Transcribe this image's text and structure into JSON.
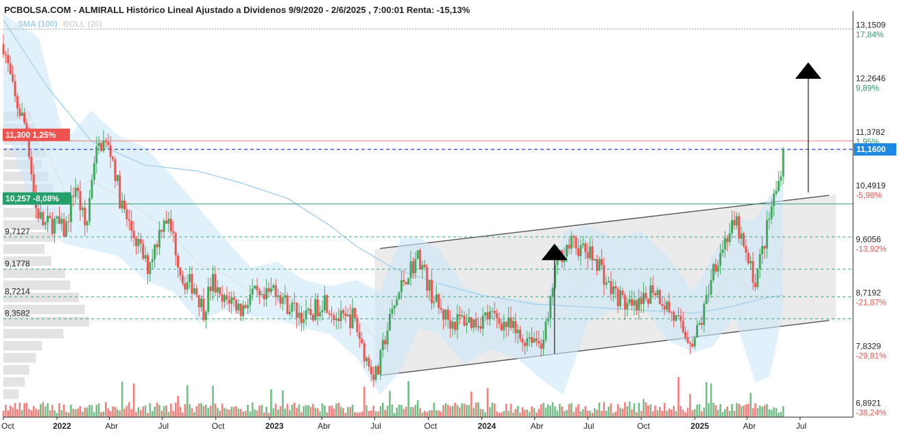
{
  "title": "PCBOLSA.COM - ALMIRALL Histórico Lineal Ajustado a Dividenos 9/9/2020 - 2/6/2025 , 7:00:01 Renta: -15,13%",
  "legend": {
    "sma": "SMA (100)",
    "boll": "BOLL (20)"
  },
  "colors": {
    "up": "#43a85f",
    "down": "#ef5350",
    "band": "#cde7f8",
    "sma": "#a9d2ee",
    "price_tag": "#1e88e5",
    "max_tag": "#ef5350",
    "min_tag": "#26a06a"
  },
  "tags": {
    "max": {
      "text": "11,300  1,25%",
      "value": 11.3
    },
    "min": {
      "text": "10,257  -8,08%",
      "value": 10.257
    },
    "last": {
      "text": "11,1600",
      "value": 11.16
    }
  },
  "left_levels": [
    {
      "label": "9,7127",
      "value": 9.7127
    },
    {
      "label": "9,1778",
      "value": 9.1778
    },
    {
      "label": "8,7214",
      "value": 8.7214
    },
    {
      "label": "8,3582",
      "value": 8.3582
    }
  ],
  "chart_data": {
    "type": "candlestick",
    "title": "PCBOLSA.COM - ALMIRALL Histórico Lineal Ajustado a Dividenos 9/9/2020 - 2/6/2025 , 7:00:01 Renta: -15,13%",
    "ylim": [
      6.73,
      13.36
    ],
    "y_ticks": [
      {
        "value": 13.1509,
        "label": "13,1509",
        "pct": "17,84%"
      },
      {
        "value": 12.2646,
        "label": "12,2646",
        "pct": "9,89%"
      },
      {
        "value": 11.3782,
        "label": "11,3782",
        "pct": "1,95%"
      },
      {
        "value": 10.4919,
        "label": "10,4919",
        "pct": "-5,98%"
      },
      {
        "value": 9.6056,
        "label": "9,6056",
        "pct": "-13,92%"
      },
      {
        "value": 8.7192,
        "label": "8,7192",
        "pct": "-21,87%"
      },
      {
        "value": 7.8329,
        "label": "7,8329",
        "pct": "-29,81%"
      },
      {
        "value": 6.8921,
        "label": "6,8921",
        "pct": "-38,24%"
      }
    ],
    "x_ticks": [
      {
        "label": "Oct",
        "date": "2021-10-01"
      },
      {
        "label": "2022",
        "date": "2022-01-01",
        "bold": true
      },
      {
        "label": "Abr",
        "date": "2022-04-01"
      },
      {
        "label": "Jul",
        "date": "2022-07-01"
      },
      {
        "label": "Oct",
        "date": "2022-10-01"
      },
      {
        "label": "2023",
        "date": "2023-01-01",
        "bold": true
      },
      {
        "label": "Abr",
        "date": "2023-04-01"
      },
      {
        "label": "Jul",
        "date": "2023-07-01"
      },
      {
        "label": "Oct",
        "date": "2023-10-01"
      },
      {
        "label": "2024",
        "date": "2024-01-01",
        "bold": true
      },
      {
        "label": "Abr",
        "date": "2024-04-01"
      },
      {
        "label": "Jul",
        "date": "2024-07-01"
      },
      {
        "label": "Oct",
        "date": "2024-10-01"
      },
      {
        "label": "2025",
        "date": "2025-01-01",
        "bold": true
      },
      {
        "label": "Abr",
        "date": "2025-04-01"
      },
      {
        "label": "Jul",
        "date": "2025-07-01"
      }
    ],
    "x_range": [
      "2021-10-01",
      "2025-09-30"
    ],
    "last_date": "2025-06-02",
    "ref_lines": {
      "max": 11.3,
      "last": 11.16,
      "min": 10.257,
      "top_dotted": 13.1509,
      "dashed": [
        9.7127,
        9.1778,
        8.7214,
        8.3582
      ]
    },
    "close_path": [
      [
        "2021-10-01",
        12.9
      ],
      [
        "2021-10-20",
        12.0
      ],
      [
        "2021-11-10",
        11.5
      ],
      [
        "2021-11-25",
        10.2
      ],
      [
        "2021-12-10",
        9.9
      ],
      [
        "2021-12-28",
        9.95
      ],
      [
        "2022-01-15",
        9.8
      ],
      [
        "2022-02-01",
        10.6
      ],
      [
        "2022-02-20",
        9.8
      ],
      [
        "2022-03-05",
        11.0
      ],
      [
        "2022-03-20",
        11.3
      ],
      [
        "2022-04-05",
        11.1
      ],
      [
        "2022-04-20",
        10.3
      ],
      [
        "2022-05-05",
        9.9
      ],
      [
        "2022-05-20",
        9.6
      ],
      [
        "2022-06-05",
        9.2
      ],
      [
        "2022-06-20",
        9.6
      ],
      [
        "2022-07-05",
        10.1
      ],
      [
        "2022-07-20",
        9.7
      ],
      [
        "2022-08-05",
        9.0
      ],
      [
        "2022-08-25",
        8.9
      ],
      [
        "2022-09-10",
        8.5
      ],
      [
        "2022-09-25",
        9.0
      ],
      [
        "2022-10-10",
        8.6
      ],
      [
        "2022-10-25",
        8.7
      ],
      [
        "2022-11-15",
        8.5
      ],
      [
        "2022-12-01",
        8.8
      ],
      [
        "2022-12-20",
        8.6
      ],
      [
        "2023-01-10",
        8.9
      ],
      [
        "2023-01-30",
        8.6
      ],
      [
        "2023-02-15",
        8.5
      ],
      [
        "2023-03-05",
        8.35
      ],
      [
        "2023-03-20",
        8.5
      ],
      [
        "2023-04-05",
        8.7
      ],
      [
        "2023-04-25",
        8.4
      ],
      [
        "2023-05-10",
        8.3
      ],
      [
        "2023-05-25",
        8.4
      ],
      [
        "2023-06-10",
        7.9
      ],
      [
        "2023-06-20",
        7.6
      ],
      [
        "2023-07-05",
        7.4
      ],
      [
        "2023-07-20",
        8.1
      ],
      [
        "2023-08-05",
        8.6
      ],
      [
        "2023-08-20",
        9.0
      ],
      [
        "2023-09-01",
        9.2
      ],
      [
        "2023-09-15",
        9.4
      ],
      [
        "2023-10-01",
        8.9
      ],
      [
        "2023-10-20",
        8.5
      ],
      [
        "2023-11-10",
        8.3
      ],
      [
        "2023-12-01",
        8.35
      ],
      [
        "2023-12-20",
        8.3
      ],
      [
        "2024-01-10",
        8.4
      ],
      [
        "2024-01-30",
        8.35
      ],
      [
        "2024-02-20",
        8.2
      ],
      [
        "2024-03-10",
        8.0
      ],
      [
        "2024-03-25",
        8.1
      ],
      [
        "2024-04-10",
        7.95
      ],
      [
        "2024-04-25",
        8.3
      ],
      [
        "2024-05-05",
        9.2
      ],
      [
        "2024-05-20",
        9.5
      ],
      [
        "2024-06-05",
        9.6
      ],
      [
        "2024-06-20",
        9.5
      ],
      [
        "2024-07-05",
        9.4
      ],
      [
        "2024-07-20",
        9.3
      ],
      [
        "2024-08-05",
        8.9
      ],
      [
        "2024-08-25",
        8.7
      ],
      [
        "2024-09-15",
        8.5
      ],
      [
        "2024-10-01",
        8.55
      ],
      [
        "2024-10-20",
        8.9
      ],
      [
        "2024-11-05",
        8.7
      ],
      [
        "2024-11-25",
        8.4
      ],
      [
        "2024-12-15",
        8.1
      ],
      [
        "2024-12-30",
        8.0
      ],
      [
        "2025-01-15",
        8.4
      ],
      [
        "2025-02-01",
        9.2
      ],
      [
        "2025-02-15",
        9.5
      ],
      [
        "2025-03-01",
        9.8
      ],
      [
        "2025-03-15",
        9.9
      ],
      [
        "2025-04-01",
        9.3
      ],
      [
        "2025-04-15",
        9.0
      ],
      [
        "2025-04-30",
        9.6
      ],
      [
        "2025-05-15",
        10.3
      ],
      [
        "2025-05-25",
        10.6
      ],
      [
        "2025-06-02",
        11.16
      ]
    ],
    "sma_100": [
      [
        "2021-10-01",
        13.3
      ],
      [
        "2021-12-15",
        12.2
      ],
      [
        "2022-03-01",
        11.3
      ],
      [
        "2022-06-01",
        10.9
      ],
      [
        "2022-09-01",
        10.8
      ],
      [
        "2022-11-15",
        10.6
      ],
      [
        "2023-02-01",
        10.35
      ],
      [
        "2023-04-15",
        9.9
      ],
      [
        "2023-06-01",
        9.55
      ],
      [
        "2023-08-01",
        9.2
      ],
      [
        "2023-10-15",
        8.95
      ],
      [
        "2024-01-01",
        8.75
      ],
      [
        "2024-04-01",
        8.6
      ],
      [
        "2024-07-01",
        8.55
      ],
      [
        "2024-10-01",
        8.5
      ],
      [
        "2025-01-01",
        8.45
      ],
      [
        "2025-03-01",
        8.55
      ],
      [
        "2025-05-01",
        8.7
      ],
      [
        "2025-06-02",
        8.75
      ]
    ],
    "bollinger_20": [
      [
        "2021-10-01",
        13.4,
        11.6
      ],
      [
        "2021-12-01",
        13.0,
        9.9
      ],
      [
        "2022-01-15",
        11.3,
        9.6
      ],
      [
        "2022-03-01",
        11.8,
        9.5
      ],
      [
        "2022-04-15",
        11.4,
        9.4
      ],
      [
        "2022-06-01",
        11.2,
        9.0
      ],
      [
        "2022-07-20",
        10.7,
        8.8
      ],
      [
        "2022-09-01",
        10.2,
        8.3
      ],
      [
        "2022-10-15",
        9.7,
        8.5
      ],
      [
        "2022-12-01",
        9.2,
        8.4
      ],
      [
        "2023-01-15",
        9.3,
        8.35
      ],
      [
        "2023-03-01",
        9.0,
        8.2
      ],
      [
        "2023-04-15",
        8.9,
        8.1
      ],
      [
        "2023-06-01",
        9.0,
        7.7
      ],
      [
        "2023-07-10",
        8.8,
        7.1
      ],
      [
        "2023-08-15",
        9.7,
        7.5
      ],
      [
        "2023-09-15",
        9.7,
        8.2
      ],
      [
        "2023-10-20",
        9.5,
        8.1
      ],
      [
        "2023-12-01",
        8.9,
        7.6
      ],
      [
        "2024-01-15",
        8.7,
        7.85
      ],
      [
        "2024-03-01",
        8.7,
        7.7
      ],
      [
        "2024-04-20",
        8.6,
        7.3
      ],
      [
        "2024-05-20",
        9.8,
        7.1
      ],
      [
        "2024-07-01",
        9.9,
        8.3
      ],
      [
        "2024-08-15",
        9.7,
        8.5
      ],
      [
        "2024-10-01",
        9.8,
        8.6
      ],
      [
        "2024-11-15",
        9.4,
        8.0
      ],
      [
        "2024-12-30",
        8.8,
        7.8
      ],
      [
        "2025-02-01",
        9.4,
        7.9
      ],
      [
        "2025-03-10",
        10.0,
        8.4
      ],
      [
        "2025-04-15",
        10.0,
        7.3
      ],
      [
        "2025-05-10",
        10.4,
        7.4
      ],
      [
        "2025-06-02",
        10.6,
        8.5
      ]
    ],
    "channel": {
      "fill_from": "2023-07-01",
      "fill_to": "2025-09-01",
      "upper": [
        [
          "2023-07-10",
          9.52
        ],
        [
          "2025-08-20",
          10.4
        ]
      ],
      "lower": [
        [
          "2023-07-10",
          7.42
        ],
        [
          "2025-08-20",
          8.33
        ]
      ]
    },
    "annotations": [
      {
        "type": "arrow-up",
        "from": [
          "2024-05-05",
          7.78
        ],
        "to": [
          "2024-05-05",
          9.6
        ]
      },
      {
        "type": "arrow-up",
        "from": [
          "2025-07-15",
          10.45
        ],
        "to": [
          "2025-07-15",
          12.6
        ]
      }
    ],
    "volume_profile_left": [
      {
        "price": 11.7,
        "size": 0.32
      },
      {
        "price": 11.5,
        "size": 0.36
      },
      {
        "price": 11.3,
        "size": 0.42
      },
      {
        "price": 11.1,
        "size": 0.5
      },
      {
        "price": 10.9,
        "size": 0.45
      },
      {
        "price": 10.7,
        "size": 0.52
      },
      {
        "price": 10.5,
        "size": 0.58
      },
      {
        "price": 10.3,
        "size": 0.55
      },
      {
        "price": 10.1,
        "size": 0.62
      },
      {
        "price": 9.9,
        "size": 0.68
      },
      {
        "price": 9.7,
        "size": 0.6
      },
      {
        "price": 9.5,
        "size": 0.48
      },
      {
        "price": 9.3,
        "size": 0.56
      },
      {
        "price": 9.1,
        "size": 0.72
      },
      {
        "price": 8.9,
        "size": 0.78
      },
      {
        "price": 8.7,
        "size": 0.88
      },
      {
        "price": 8.5,
        "size": 0.95
      },
      {
        "price": 8.3,
        "size": 1.0
      },
      {
        "price": 8.1,
        "size": 0.7
      },
      {
        "price": 7.9,
        "size": 0.45
      },
      {
        "price": 7.7,
        "size": 0.38
      },
      {
        "price": 7.5,
        "size": 0.3
      },
      {
        "price": 7.3,
        "size": 0.25
      },
      {
        "price": 7.1,
        "size": 0.18
      }
    ]
  }
}
